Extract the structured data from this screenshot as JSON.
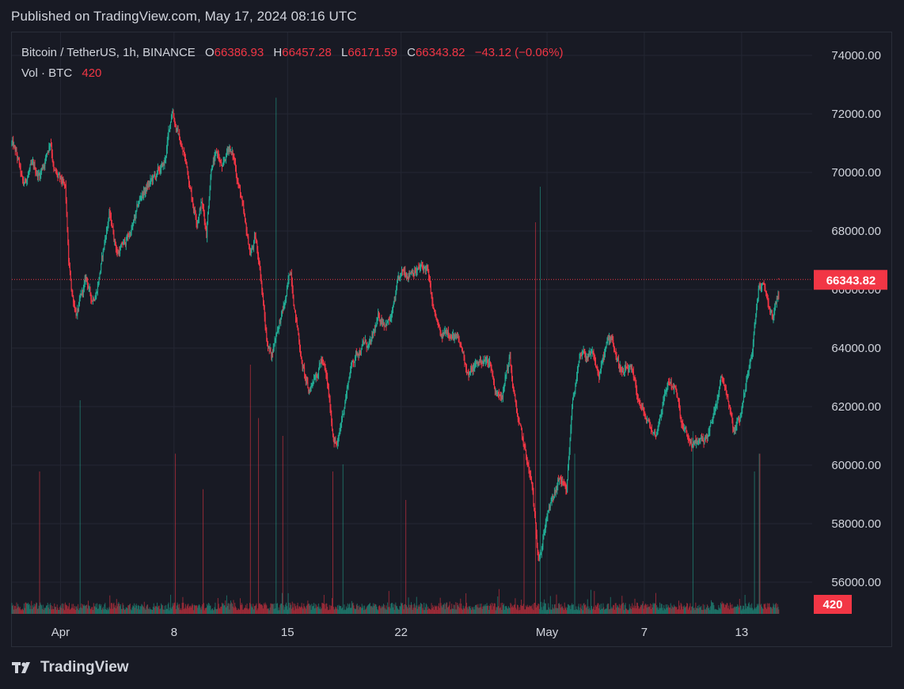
{
  "header": {
    "published": "Published on TradingView.com, May 17, 2024 08:16 UTC"
  },
  "legend": {
    "symbol": "Bitcoin / TetherUS, 1h, BINANCE",
    "open_label": "O",
    "open": "66386.93",
    "high_label": "H",
    "high": "66457.28",
    "low_label": "L",
    "low": "66171.59",
    "close_label": "C",
    "close": "66343.82",
    "change": "−43.12 (−0.06%)",
    "volume_label": "Vol · BTC",
    "volume": "420"
  },
  "footer": {
    "brand": "TradingView"
  },
  "colors": {
    "background": "#181a24",
    "up": "#22ab94",
    "down": "#f23645",
    "grid": "#242733",
    "text": "#d1d4dc"
  },
  "chart_data": {
    "type": "candlestick",
    "symbol": "Bitcoin / TetherUS",
    "interval": "1h",
    "exchange": "BINANCE",
    "y_ticks": [
      "74000.00",
      "72000.00",
      "70000.00",
      "68000.00",
      "66000.00",
      "64000.00",
      "62000.00",
      "60000.00",
      "58000.00",
      "56000.00"
    ],
    "ylim": [
      55000,
      75000
    ],
    "x_ticks": [
      {
        "label": "Apr",
        "day": 0
      },
      {
        "label": "8",
        "day": 7
      },
      {
        "label": "15",
        "day": 14
      },
      {
        "label": "22",
        "day": 21
      },
      {
        "label": "May",
        "day": 30
      },
      {
        "label": "7",
        "day": 36
      },
      {
        "label": "13",
        "day": 42
      }
    ],
    "x_range_days": [
      -3.0,
      46.35
    ],
    "last_price": "66343.82",
    "last_price_value": 66343.82,
    "last_volume": "420",
    "price_path": [
      [
        -3.0,
        71000
      ],
      [
        -2.6,
        70300
      ],
      [
        -2.3,
        69400
      ],
      [
        -1.9,
        70100
      ],
      [
        -1.3,
        69900
      ],
      [
        -0.9,
        70600
      ],
      [
        -0.6,
        71200
      ],
      [
        -0.4,
        70100
      ],
      [
        0.0,
        69600
      ],
      [
        0.3,
        69300
      ],
      [
        0.5,
        66800
      ],
      [
        0.7,
        65800
      ],
      [
        1.0,
        65200
      ],
      [
        1.3,
        65700
      ],
      [
        1.6,
        66300
      ],
      [
        1.9,
        65600
      ],
      [
        2.2,
        66000
      ],
      [
        2.6,
        67200
      ],
      [
        3.0,
        68600
      ],
      [
        3.5,
        67300
      ],
      [
        4.0,
        67600
      ],
      [
        4.5,
        68200
      ],
      [
        5.0,
        69200
      ],
      [
        5.5,
        69600
      ],
      [
        6.0,
        69900
      ],
      [
        6.4,
        70200
      ],
      [
        6.9,
        72200
      ],
      [
        7.1,
        71700
      ],
      [
        7.4,
        71000
      ],
      [
        7.8,
        70200
      ],
      [
        8.1,
        69200
      ],
      [
        8.4,
        68500
      ],
      [
        8.7,
        69100
      ],
      [
        9.0,
        68000
      ],
      [
        9.3,
        70400
      ],
      [
        9.7,
        70600
      ],
      [
        10.0,
        70000
      ],
      [
        10.4,
        70900
      ],
      [
        10.7,
        70400
      ],
      [
        11.1,
        69300
      ],
      [
        11.4,
        68000
      ],
      [
        11.7,
        67200
      ],
      [
        12.0,
        67700
      ],
      [
        12.3,
        66800
      ],
      [
        12.7,
        64300
      ],
      [
        13.0,
        63800
      ],
      [
        13.4,
        64800
      ],
      [
        13.8,
        65400
      ],
      [
        14.2,
        66600
      ],
      [
        14.5,
        65200
      ],
      [
        14.9,
        63500
      ],
      [
        15.3,
        62400
      ],
      [
        15.7,
        63200
      ],
      [
        16.1,
        63700
      ],
      [
        16.4,
        62900
      ],
      [
        16.8,
        61100
      ],
      [
        17.1,
        60700
      ],
      [
        17.5,
        62100
      ],
      [
        17.9,
        63400
      ],
      [
        18.3,
        63900
      ],
      [
        18.7,
        64200
      ],
      [
        19.1,
        64000
      ],
      [
        19.6,
        64900
      ],
      [
        20.0,
        65000
      ],
      [
        20.4,
        65000
      ],
      [
        20.8,
        66100
      ],
      [
        21.2,
        66500
      ],
      [
        21.7,
        66800
      ],
      [
        22.1,
        66700
      ],
      [
        22.6,
        66700
      ],
      [
        23.0,
        65200
      ],
      [
        23.5,
        64200
      ],
      [
        23.9,
        64700
      ],
      [
        24.3,
        64400
      ],
      [
        24.8,
        63800
      ],
      [
        25.2,
        63100
      ],
      [
        25.6,
        63400
      ],
      [
        26.0,
        63600
      ],
      [
        26.5,
        63500
      ],
      [
        26.9,
        62400
      ],
      [
        27.3,
        62700
      ],
      [
        27.7,
        63700
      ],
      [
        28.0,
        62200
      ],
      [
        28.4,
        61000
      ],
      [
        28.8,
        60000
      ],
      [
        29.1,
        59100
      ],
      [
        29.4,
        57000
      ],
      [
        29.7,
        57400
      ],
      [
        30.0,
        58400
      ],
      [
        30.4,
        58800
      ],
      [
        30.8,
        59500
      ],
      [
        31.2,
        58800
      ],
      [
        31.6,
        62400
      ],
      [
        32.0,
        63500
      ],
      [
        32.4,
        63700
      ],
      [
        32.8,
        63600
      ],
      [
        33.2,
        63000
      ],
      [
        33.6,
        63900
      ],
      [
        34.0,
        64400
      ],
      [
        34.3,
        63700
      ],
      [
        34.7,
        63100
      ],
      [
        35.1,
        63200
      ],
      [
        35.5,
        62400
      ],
      [
        35.9,
        61800
      ],
      [
        36.3,
        61300
      ],
      [
        36.7,
        61000
      ],
      [
        37.1,
        62100
      ],
      [
        37.5,
        62900
      ],
      [
        37.9,
        62700
      ],
      [
        38.3,
        61300
      ],
      [
        38.7,
        60800
      ],
      [
        39.1,
        60600
      ],
      [
        39.5,
        60900
      ],
      [
        39.9,
        61000
      ],
      [
        40.3,
        61700
      ],
      [
        40.7,
        63100
      ],
      [
        41.1,
        62600
      ],
      [
        41.5,
        61400
      ],
      [
        41.9,
        61700
      ],
      [
        42.3,
        62900
      ],
      [
        42.7,
        64400
      ],
      [
        43.1,
        66300
      ],
      [
        43.5,
        65800
      ],
      [
        43.9,
        65000
      ],
      [
        44.3,
        65900
      ]
    ],
    "volume_spikes": [
      {
        "day": -1.3,
        "v": 4.0
      },
      {
        "day": 1.2,
        "v": 6.0
      },
      {
        "day": 7.1,
        "v": 4.5
      },
      {
        "day": 8.8,
        "v": 3.5
      },
      {
        "day": 11.7,
        "v": 7.0
      },
      {
        "day": 12.2,
        "v": 5.5
      },
      {
        "day": 13.3,
        "v": 14.5
      },
      {
        "day": 13.7,
        "v": 5.0
      },
      {
        "day": 16.8,
        "v": 4.0
      },
      {
        "day": 17.4,
        "v": 4.2
      },
      {
        "day": 21.3,
        "v": 3.2
      },
      {
        "day": 28.6,
        "v": 4.5
      },
      {
        "day": 29.3,
        "v": 11.0
      },
      {
        "day": 29.6,
        "v": 12.0
      },
      {
        "day": 31.7,
        "v": 4.5
      },
      {
        "day": 39.0,
        "v": 4.8
      },
      {
        "day": 42.8,
        "v": 4.0
      },
      {
        "day": 43.1,
        "v": 4.5
      }
    ]
  }
}
